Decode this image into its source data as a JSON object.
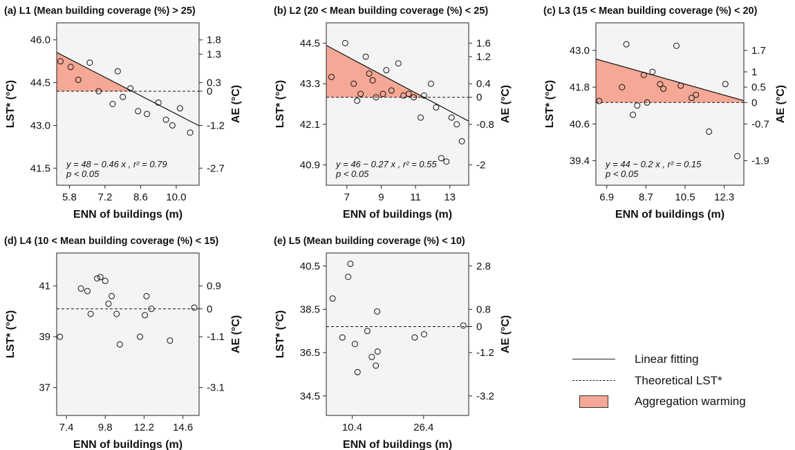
{
  "chart_data": [
    {
      "type": "scatter",
      "panel_title": "(a) L1 (Mean building coverage (%) > 25)",
      "xlabel": "ENN of buildings (m)",
      "ylabel": "LST* (°C)",
      "y2label": "AE (°C)",
      "xlim": [
        5.3,
        10.9
      ],
      "ylim": [
        40.9,
        46.6
      ],
      "xticks": [
        5.8,
        7.2,
        8.6,
        10.0
      ],
      "xtick_labels": [
        "5.8",
        "7.2",
        "8.6",
        "10.0"
      ],
      "yticks": [
        41.5,
        43.0,
        44.5,
        46.0
      ],
      "ytick_labels": [
        "41.5",
        "43.0",
        "44.5",
        "46.0"
      ],
      "y2tick_labels": [
        "-2.7",
        "-1.2",
        "0",
        "0.3",
        "1.3",
        "1.8"
      ],
      "y2ticks_at": [
        41.5,
        43.0,
        44.2,
        44.5,
        45.5,
        46.0
      ],
      "theoretical_lst": 44.2,
      "fit": {
        "intercept": 48,
        "slope": -0.46
      },
      "equation": "y = 48 − 0.46 x , r² = 0.79",
      "pvalue": "p < 0.05",
      "points": [
        [
          5.45,
          45.25
        ],
        [
          5.85,
          45.05
        ],
        [
          6.15,
          44.6
        ],
        [
          6.6,
          45.2
        ],
        [
          6.95,
          44.2
        ],
        [
          7.5,
          43.75
        ],
        [
          7.7,
          44.9
        ],
        [
          7.9,
          44.0
        ],
        [
          8.2,
          44.3
        ],
        [
          8.5,
          43.5
        ],
        [
          8.85,
          43.4
        ],
        [
          9.3,
          43.8
        ],
        [
          9.6,
          43.2
        ],
        [
          9.85,
          43.0
        ],
        [
          10.15,
          43.6
        ],
        [
          10.55,
          42.75
        ]
      ]
    },
    {
      "type": "scatter",
      "panel_title": "(b) L2 (20 < Mean building coverage (%) < 25)",
      "xlabel": "ENN of buildings (m)",
      "ylabel": "LST* (°C)",
      "y2label": "AE (°C)",
      "xlim": [
        5.8,
        14.1
      ],
      "ylim": [
        40.3,
        45.1
      ],
      "xticks": [
        7,
        9,
        11,
        13
      ],
      "xtick_labels": [
        "7",
        "9",
        "11",
        "13"
      ],
      "yticks": [
        40.9,
        42.1,
        43.3,
        44.5
      ],
      "ytick_labels": [
        "40.9",
        "42.1",
        "43.3",
        "44.5"
      ],
      "y2tick_labels": [
        "-2",
        "-0.8",
        "0",
        "0.4",
        "1.2",
        "1.6"
      ],
      "y2ticks_at": [
        40.9,
        42.1,
        42.9,
        43.3,
        44.1,
        44.5
      ],
      "theoretical_lst": 42.9,
      "fit": {
        "intercept": 46,
        "slope": -0.27
      },
      "equation": "y = 46 − 0.27 x , r² = 0.55",
      "pvalue": "p < 0.05",
      "points": [
        [
          6.1,
          43.5
        ],
        [
          6.9,
          44.5
        ],
        [
          7.4,
          43.3
        ],
        [
          7.6,
          42.8
        ],
        [
          7.8,
          43.0
        ],
        [
          8.1,
          44.1
        ],
        [
          8.3,
          43.6
        ],
        [
          8.5,
          43.4
        ],
        [
          8.7,
          42.9
        ],
        [
          9.1,
          43.0
        ],
        [
          9.3,
          43.7
        ],
        [
          9.6,
          43.1
        ],
        [
          10.0,
          43.9
        ],
        [
          10.3,
          42.95
        ],
        [
          10.6,
          43.0
        ],
        [
          10.9,
          42.9
        ],
        [
          11.3,
          42.3
        ],
        [
          11.5,
          42.95
        ],
        [
          11.9,
          43.3
        ],
        [
          12.2,
          42.6
        ],
        [
          12.5,
          41.1
        ],
        [
          12.8,
          41.0
        ],
        [
          13.1,
          42.3
        ],
        [
          13.4,
          42.1
        ],
        [
          13.7,
          41.6
        ]
      ]
    },
    {
      "type": "scatter",
      "panel_title": "(c) L3 (15 < Mean building coverage (%) < 20)",
      "xlabel": "ENN of buildings (m)",
      "ylabel": "LST* (°C)",
      "y2label": "AE (°C)",
      "xlim": [
        6.4,
        13.2
      ],
      "ylim": [
        38.6,
        43.9
      ],
      "xticks": [
        6.9,
        8.7,
        10.5,
        12.3
      ],
      "xtick_labels": [
        "6.9",
        "8.7",
        "10.5",
        "12.3"
      ],
      "yticks": [
        39.4,
        40.6,
        41.8,
        43.0
      ],
      "ytick_labels": [
        "39.4",
        "40.6",
        "41.8",
        "43.0"
      ],
      "y2tick_labels": [
        "-1.9",
        "-0.7",
        "0",
        "0.5",
        "1",
        "1.7"
      ],
      "y2ticks_at": [
        39.4,
        40.6,
        41.3,
        41.8,
        42.3,
        43.0
      ],
      "theoretical_lst": 41.3,
      "fit": {
        "intercept": 44,
        "slope": -0.2
      },
      "equation": "y = 44 − 0.2 x , r² = 0.15",
      "pvalue": "p < 0.05",
      "points": [
        [
          6.55,
          41.35
        ],
        [
          7.6,
          41.8
        ],
        [
          7.8,
          43.2
        ],
        [
          8.1,
          40.9
        ],
        [
          8.3,
          41.2
        ],
        [
          8.6,
          42.2
        ],
        [
          8.75,
          41.3
        ],
        [
          9.0,
          42.3
        ],
        [
          9.35,
          41.9
        ],
        [
          9.5,
          41.75
        ],
        [
          10.1,
          43.15
        ],
        [
          10.3,
          41.85
        ],
        [
          10.8,
          41.45
        ],
        [
          11.0,
          41.55
        ],
        [
          11.6,
          40.35
        ],
        [
          12.35,
          41.9
        ],
        [
          12.9,
          39.55
        ]
      ]
    },
    {
      "type": "scatter",
      "panel_title": "(d) L4 (10 < Mean building coverage (%) < 15)",
      "xlabel": "ENN of buildings (m)",
      "ylabel": "LST* (°C)",
      "y2label": "AE (°C)",
      "xlim": [
        6.8,
        15.6
      ],
      "ylim": [
        35.9,
        42.3
      ],
      "xticks": [
        7.4,
        9.8,
        12.2,
        14.6
      ],
      "xtick_labels": [
        "7.4",
        "9.8",
        "12.2",
        "14.6"
      ],
      "yticks": [
        37,
        39,
        41
      ],
      "ytick_labels": [
        "37",
        "39",
        "41"
      ],
      "y2tick_labels": [
        "-3.1",
        "-1.1",
        "0",
        "0.9"
      ],
      "y2ticks_at": [
        37.0,
        39.0,
        40.1,
        41.0
      ],
      "theoretical_lst": 40.1,
      "points": [
        [
          7.0,
          39.0
        ],
        [
          8.3,
          40.9
        ],
        [
          8.7,
          40.8
        ],
        [
          8.9,
          39.9
        ],
        [
          9.3,
          41.3
        ],
        [
          9.5,
          41.35
        ],
        [
          9.8,
          41.2
        ],
        [
          10.0,
          40.3
        ],
        [
          10.2,
          40.6
        ],
        [
          10.5,
          39.9
        ],
        [
          10.7,
          38.7
        ],
        [
          11.95,
          39.0
        ],
        [
          12.25,
          39.85
        ],
        [
          12.35,
          40.6
        ],
        [
          12.65,
          40.1
        ],
        [
          13.8,
          38.85
        ],
        [
          15.3,
          40.15
        ]
      ]
    },
    {
      "type": "scatter",
      "panel_title": "(e) L5 (Mean building coverage (%) < 10)",
      "xlabel": "ENN of buildings (m)",
      "ylabel": "LST* (°C)",
      "y2label": "AE (°C)",
      "xlim": [
        4.6,
        36.5
      ],
      "ylim": [
        33.6,
        41.1
      ],
      "xticks": [
        10.4,
        26.4
      ],
      "xtick_labels": [
        "10.4",
        "26.4"
      ],
      "yticks": [
        34.5,
        36.5,
        38.5,
        40.5
      ],
      "ytick_labels": [
        "34.5",
        "36.5",
        "38.5",
        "40.5"
      ],
      "y2tick_labels": [
        "-3.2",
        "-1.2",
        "0",
        "0.8",
        "2.8"
      ],
      "y2ticks_at": [
        34.5,
        36.5,
        37.7,
        38.5,
        40.5
      ],
      "theoretical_lst": 37.7,
      "points": [
        [
          6.0,
          39.0
        ],
        [
          8.2,
          37.2
        ],
        [
          9.5,
          40.0
        ],
        [
          10.0,
          40.6
        ],
        [
          11.0,
          36.9
        ],
        [
          11.6,
          35.6
        ],
        [
          13.8,
          37.5
        ],
        [
          14.8,
          36.3
        ],
        [
          15.7,
          35.9
        ],
        [
          16.0,
          38.4
        ],
        [
          16.1,
          36.55
        ],
        [
          24.4,
          37.2
        ],
        [
          26.5,
          37.35
        ],
        [
          35.3,
          37.75
        ]
      ]
    }
  ],
  "legend": {
    "linear_fitting": "Linear fitting",
    "theoretical_lst": "Theoretical LST*",
    "aggregation_warming": "Aggregation warming"
  },
  "colors": {
    "warming_fill": "#f4a895",
    "panel_bg": "#f4f4f4",
    "ink": "#111111"
  }
}
